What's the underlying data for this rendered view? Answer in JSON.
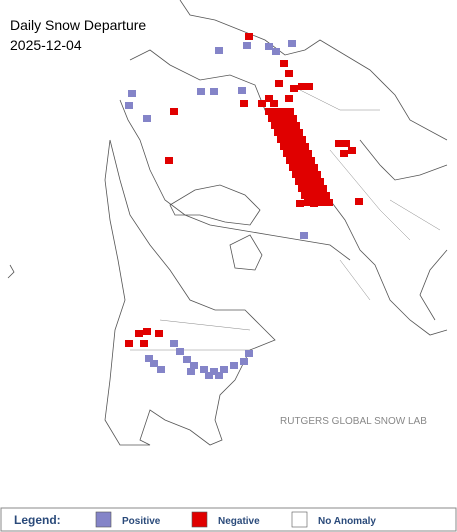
{
  "title": "Daily Snow Departure",
  "date": "2025-12-04",
  "credit": "RUTGERS GLOBAL SNOW LAB",
  "legend": {
    "title": "Legend:",
    "items": [
      {
        "label": "Positive",
        "color": "#8484c8"
      },
      {
        "label": "Negative",
        "color": "#e00000"
      },
      {
        "label": "No Anomaly",
        "color": "#ffffff"
      }
    ]
  }
}
